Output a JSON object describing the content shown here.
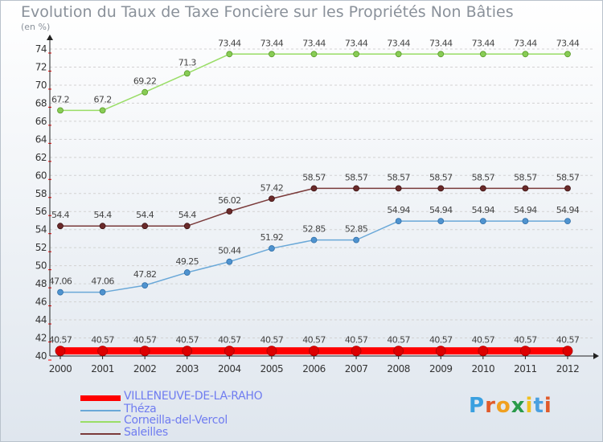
{
  "chart_data": {
    "type": "line",
    "title": "Evolution du Taux de Taxe Foncière sur les Propriétés Non Bâties",
    "ylabel": "(en %)",
    "xlabel": "",
    "x": [
      "2000",
      "2001",
      "2002",
      "2003",
      "2004",
      "2005",
      "2006",
      "2007",
      "2008",
      "2009",
      "2010",
      "2011",
      "2012"
    ],
    "ylim": [
      40,
      74
    ],
    "yticks": [
      40,
      42,
      44,
      46,
      48,
      50,
      52,
      54,
      56,
      58,
      60,
      62,
      64,
      66,
      68,
      70,
      72,
      74
    ],
    "grid": "horizontal dashed",
    "legend_position": "bottom-left",
    "series": [
      {
        "name": "VILLENEUVE-DE-LA-RAHO",
        "color": "#ff0000",
        "values": [
          40.57,
          40.57,
          40.57,
          40.57,
          40.57,
          40.57,
          40.57,
          40.57,
          40.57,
          40.57,
          40.57,
          40.57,
          40.57
        ],
        "labels": [
          "40.57",
          "40.57",
          "40.57",
          "40.57",
          "40.57",
          "40.57",
          "40.57",
          "40.57",
          "40.57",
          "40.57",
          "40.57",
          "40.57",
          "40.57"
        ]
      },
      {
        "name": "Théza",
        "color": "#6aa8d8",
        "values": [
          47.06,
          47.06,
          47.82,
          49.25,
          50.44,
          51.92,
          52.85,
          52.85,
          54.94,
          54.94,
          54.94,
          54.94,
          54.94
        ],
        "labels": [
          "47.06",
          "47.06",
          "47.82",
          "49.25",
          "50.44",
          "51.92",
          "52.85",
          "52.85",
          "54.94",
          "54.94",
          "54.94",
          "54.94",
          "54.94"
        ]
      },
      {
        "name": "Corneilla-del-Vercol",
        "color": "#99dd66",
        "values": [
          67.2,
          67.2,
          69.22,
          71.3,
          73.44,
          73.44,
          73.44,
          73.44,
          73.44,
          73.44,
          73.44,
          73.44,
          73.44
        ],
        "labels": [
          "67.2",
          "67.2",
          "69.22",
          "71.3",
          "73.44",
          "73.44",
          "73.44",
          "73.44",
          "73.44",
          "73.44",
          "73.44",
          "73.44",
          "73.44"
        ]
      },
      {
        "name": "Saleilles",
        "color": "#7a3a3a",
        "values": [
          54.4,
          54.4,
          54.4,
          54.4,
          56.02,
          57.42,
          58.57,
          58.57,
          58.57,
          58.57,
          58.57,
          58.57,
          58.57
        ],
        "labels": [
          "54.4",
          "54.4",
          "54.4",
          "54.4",
          "56.02",
          "57.42",
          "58.57",
          "58.57",
          "58.57",
          "58.57",
          "58.57",
          "58.57",
          "58.57"
        ]
      }
    ]
  },
  "logo": {
    "text": "Proxiti"
  }
}
